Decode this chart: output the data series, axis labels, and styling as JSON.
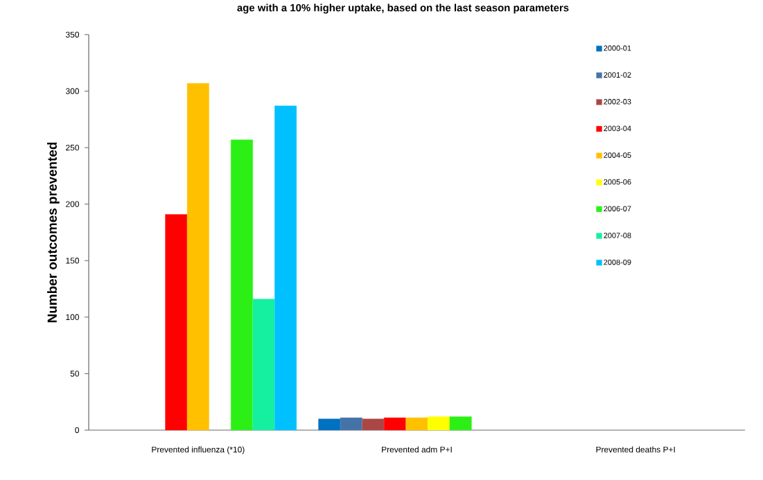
{
  "chart_data": {
    "type": "bar",
    "title": "age with a 10% higher uptake, based on the last season parameters",
    "ylabel": "Number outcomes prevented",
    "categories": [
      "Prevented influenza (*10)",
      "Prevented adm P+I",
      "Prevented deaths  P+I"
    ],
    "ylim": [
      0,
      350
    ],
    "yticks": [
      0,
      50,
      100,
      150,
      200,
      250,
      300,
      350
    ],
    "legend": "top right",
    "grid": false,
    "series": [
      {
        "name": "2000-01",
        "color": "#0070c0",
        "values": [
          null,
          10,
          null
        ]
      },
      {
        "name": "2001-02",
        "color": "#4573a7",
        "values": [
          null,
          11,
          null
        ]
      },
      {
        "name": "2002-03",
        "color": "#aa4643",
        "values": [
          null,
          10,
          null
        ]
      },
      {
        "name": "2003-04",
        "color": "#ff0000",
        "values": [
          191,
          11,
          null
        ]
      },
      {
        "name": "2004-05",
        "color": "#ffc000",
        "values": [
          307,
          11,
          null
        ]
      },
      {
        "name": "2005-06",
        "color": "#ffff00",
        "values": [
          null,
          12,
          null
        ]
      },
      {
        "name": "2006-07",
        "color": "#2cf015",
        "values": [
          257,
          12,
          null
        ]
      },
      {
        "name": "2007-08",
        "color": "#14f0a0",
        "values": [
          116,
          null,
          null
        ]
      },
      {
        "name": "2008-09",
        "color": "#00c0ff",
        "values": [
          287,
          null,
          null
        ]
      }
    ]
  }
}
